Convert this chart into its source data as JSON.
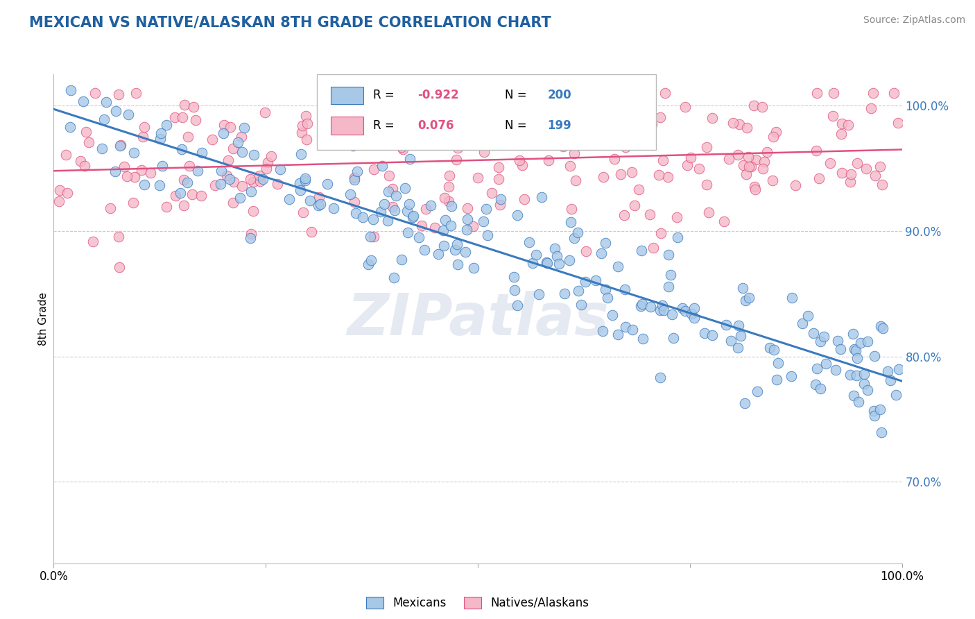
{
  "title": "MEXICAN VS NATIVE/ALASKAN 8TH GRADE CORRELATION CHART",
  "source": "Source: ZipAtlas.com",
  "ylabel": "8th Grade",
  "legend_blue_R": "-0.922",
  "legend_blue_N": "200",
  "legend_pink_R": "0.076",
  "legend_pink_N": "199",
  "blue_color": "#a8c8e8",
  "pink_color": "#f4b8c8",
  "blue_line_color": "#3a7abf",
  "pink_line_color": "#e05080",
  "title_color": "#2060a0",
  "R_value_color": "#e05080",
  "N_value_color": "#3a7abf",
  "xlim": [
    0.0,
    1.0
  ],
  "ylim": [
    0.635,
    1.025
  ],
  "yticks": [
    0.7,
    0.8,
    0.9,
    1.0
  ],
  "ytick_labels": [
    "70.0%",
    "80.0%",
    "90.0%",
    "100.0%"
  ],
  "watermark": "ZIPatlas",
  "blue_seed": 42,
  "pink_seed": 99
}
